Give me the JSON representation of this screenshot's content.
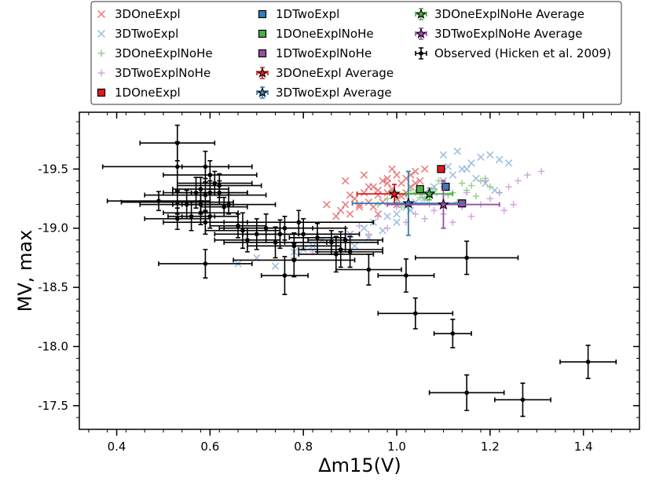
{
  "chart_data": {
    "type": "scatter",
    "title": "",
    "xlabel": "Δm15(V)",
    "ylabel": "MV, max",
    "xlim": [
      0.32,
      1.52
    ],
    "ylim": [
      -17.3,
      -19.98
    ],
    "y_inverted": true,
    "xticks": [
      0.4,
      0.6,
      0.8,
      1.0,
      1.2,
      1.4
    ],
    "xtick_labels": [
      "0.4",
      "0.6",
      "0.8",
      "1.0",
      "1.2",
      "1.4"
    ],
    "yticks": [
      -19.5,
      -19.0,
      -18.5,
      -18.0,
      -17.5
    ],
    "ytick_labels": [
      "-19.5",
      "-19.0",
      "-18.5",
      "-18.0",
      "-17.5"
    ],
    "grid": false,
    "legend_placement": "top-outside",
    "legend": [
      {
        "label": "3DOneExpl",
        "marker": "x",
        "color": "#e8696b"
      },
      {
        "label": "3DTwoExpl",
        "marker": "x",
        "color": "#8fb5d9"
      },
      {
        "label": "3DOneExplNoHe",
        "marker": "plus",
        "color": "#86c97d"
      },
      {
        "label": "3DTwoExplNoHe",
        "marker": "plus",
        "color": "#c99ad3"
      },
      {
        "label": "1DOneExpl",
        "marker": "square",
        "color": "#e41a1c"
      },
      {
        "label": "1DTwoExpl",
        "marker": "square",
        "color": "#377eb8"
      },
      {
        "label": "1DOneExplNoHe",
        "marker": "square",
        "color": "#4daf4a"
      },
      {
        "label": "1DTwoExplNoHe",
        "marker": "square",
        "color": "#984ea3"
      },
      {
        "label": "3DOneExpl Average",
        "marker": "star-err",
        "color": "#e41a1c"
      },
      {
        "label": "3DTwoExpl Average",
        "marker": "star-err",
        "color": "#377eb8"
      },
      {
        "label": "3DOneExplNoHe Average",
        "marker": "star-err",
        "color": "#4daf4a"
      },
      {
        "label": "3DTwoExplNoHe Average",
        "marker": "star-err",
        "color": "#984ea3"
      },
      {
        "label": "Observed (Hicken et al. 2009)",
        "marker": "dot-err",
        "color": "#000000"
      }
    ],
    "series": [
      {
        "name": "3DOneExpl",
        "color": "#e8696b",
        "marker": "x",
        "x": [
          0.87,
          0.88,
          0.89,
          0.9,
          0.91,
          0.92,
          0.93,
          0.94,
          0.95,
          0.96,
          0.97,
          0.98,
          0.99,
          1.0,
          1.01,
          1.02,
          1.03,
          1.04,
          1.05,
          1.06,
          0.9,
          0.92,
          0.94,
          0.96,
          0.98,
          1.0,
          1.02,
          1.04,
          0.93,
          0.95,
          0.97,
          0.99,
          1.01,
          1.03,
          1.05,
          0.96,
          0.98,
          1.0,
          0.85,
          0.89
        ],
        "y": [
          -19.1,
          -19.15,
          -19.2,
          -19.12,
          -19.25,
          -19.18,
          -19.3,
          -19.22,
          -19.35,
          -19.28,
          -19.4,
          -19.3,
          -19.33,
          -19.45,
          -19.38,
          -19.42,
          -19.35,
          -19.48,
          -19.4,
          -19.5,
          -19.28,
          -19.2,
          -19.35,
          -19.32,
          -19.42,
          -19.25,
          -19.3,
          -19.38,
          -19.45,
          -19.18,
          -19.22,
          -19.5,
          -19.27,
          -19.45,
          -19.32,
          -19.12,
          -19.38,
          -19.2,
          -19.2,
          -19.4
        ]
      },
      {
        "name": "3DTwoExpl",
        "color": "#8fb5d9",
        "marker": "x",
        "x": [
          0.66,
          0.7,
          0.74,
          0.78,
          0.82,
          0.86,
          0.9,
          0.93,
          0.95,
          0.98,
          1.0,
          1.02,
          1.04,
          1.06,
          1.08,
          1.1,
          1.12,
          1.14,
          1.16,
          1.18,
          1.2,
          1.22,
          1.24,
          1.1,
          1.13,
          1.15,
          1.17,
          1.19,
          1.21,
          1.06,
          1.03,
          1.0,
          0.97,
          0.94,
          0.91,
          0.88,
          0.84,
          0.8,
          1.08,
          1.11
        ],
        "y": [
          -18.7,
          -18.75,
          -18.68,
          -18.8,
          -18.85,
          -18.9,
          -18.95,
          -19.0,
          -19.05,
          -19.1,
          -19.12,
          -19.18,
          -19.22,
          -19.3,
          -19.35,
          -19.4,
          -19.45,
          -19.5,
          -19.55,
          -19.6,
          -19.62,
          -19.58,
          -19.55,
          -19.62,
          -19.65,
          -19.5,
          -19.42,
          -19.38,
          -19.32,
          -19.25,
          -19.15,
          -19.05,
          -18.98,
          -18.92,
          -18.85,
          -18.8,
          -18.9,
          -18.82,
          -19.3,
          -19.52
        ]
      },
      {
        "name": "3DOneExplNoHe",
        "color": "#86c97d",
        "marker": "plus",
        "x": [
          0.96,
          0.98,
          1.0,
          1.02,
          1.04,
          1.06,
          1.08,
          1.1,
          1.12,
          1.14,
          1.16,
          1.18,
          1.2,
          1.22,
          1.01,
          1.03,
          1.05,
          1.07,
          1.09,
          1.11,
          1.13,
          1.15,
          0.99,
          1.17,
          1.19
        ],
        "y": [
          -19.2,
          -19.25,
          -19.22,
          -19.28,
          -19.3,
          -19.25,
          -19.33,
          -19.35,
          -19.3,
          -19.38,
          -19.36,
          -19.4,
          -19.35,
          -19.3,
          -19.18,
          -19.32,
          -19.26,
          -19.2,
          -19.4,
          -19.28,
          -19.22,
          -19.32,
          -19.3,
          -19.27,
          -19.42
        ]
      },
      {
        "name": "3DTwoExplNoHe",
        "color": "#c99ad3",
        "marker": "plus",
        "x": [
          0.78,
          0.82,
          0.86,
          0.9,
          0.94,
          0.98,
          1.02,
          1.06,
          1.1,
          1.14,
          1.18,
          1.2,
          1.22,
          1.24,
          1.26,
          1.28,
          1.31,
          1.16,
          1.12,
          1.08,
          1.04,
          1.0,
          0.96,
          0.92,
          1.25,
          1.23,
          1.19,
          1.15
        ],
        "y": [
          -18.75,
          -18.8,
          -18.85,
          -18.92,
          -18.95,
          -19.0,
          -19.05,
          -19.08,
          -19.12,
          -19.18,
          -19.2,
          -19.25,
          -19.3,
          -19.35,
          -19.4,
          -19.45,
          -19.48,
          -19.1,
          -19.05,
          -19.15,
          -19.12,
          -19.18,
          -19.1,
          -19.02,
          -19.2,
          -19.15,
          -19.4,
          -19.3
        ]
      },
      {
        "name": "1DOneExpl",
        "color": "#e41a1c",
        "marker": "square",
        "x": [
          1.095
        ],
        "y": [
          -19.5
        ]
      },
      {
        "name": "1DTwoExpl",
        "color": "#377eb8",
        "marker": "square",
        "x": [
          1.105
        ],
        "y": [
          -19.35
        ]
      },
      {
        "name": "1DOneExplNoHe",
        "color": "#4daf4a",
        "marker": "square",
        "x": [
          1.05
        ],
        "y": [
          -19.33
        ]
      },
      {
        "name": "1DTwoExplNoHe",
        "color": "#984ea3",
        "marker": "square",
        "x": [
          1.14
        ],
        "y": [
          -19.21
        ]
      },
      {
        "name": "3DOneExpl Average",
        "color": "#e41a1c",
        "marker": "star-err",
        "x": [
          0.995
        ],
        "y": [
          -19.29
        ],
        "xerr": [
          0.08
        ],
        "yerr": [
          0.08
        ]
      },
      {
        "name": "3DTwoExpl Average",
        "color": "#377eb8",
        "marker": "star-err",
        "x": [
          1.025
        ],
        "y": [
          -19.21
        ],
        "xerr": [
          0.12
        ],
        "yerr": [
          0.27
        ]
      },
      {
        "name": "3DOneExplNoHe Average",
        "color": "#4daf4a",
        "marker": "star-err",
        "x": [
          1.07
        ],
        "y": [
          -19.29
        ],
        "xerr": [
          0.05
        ],
        "yerr": [
          0.05
        ]
      },
      {
        "name": "3DTwoExplNoHe Average",
        "color": "#984ea3",
        "marker": "star-err",
        "x": [
          1.1
        ],
        "y": [
          -19.2
        ],
        "xerr": [
          0.12
        ],
        "yerr": [
          0.2
        ]
      },
      {
        "name": "Observed (Hicken et al. 2009)",
        "color": "#000000",
        "marker": "dot-err",
        "x": [
          0.53,
          0.53,
          0.59,
          0.6,
          0.61,
          0.62,
          0.58,
          0.57,
          0.59,
          0.6,
          0.62,
          0.55,
          0.49,
          0.53,
          0.58,
          0.64,
          0.63,
          0.58,
          0.6,
          0.53,
          0.59,
          0.56,
          0.66,
          0.67,
          0.68,
          0.7,
          0.72,
          0.74,
          0.75,
          0.76,
          0.78,
          0.79,
          0.8,
          0.83,
          0.86,
          0.87,
          0.88,
          0.89,
          0.9,
          0.59,
          0.76,
          0.78,
          0.94,
          1.02,
          1.04,
          1.12,
          1.15,
          1.15,
          1.27,
          1.41
        ],
        "y": [
          -19.72,
          -19.52,
          -19.52,
          -19.45,
          -19.38,
          -19.36,
          -19.33,
          -19.3,
          -19.28,
          -19.3,
          -19.3,
          -19.2,
          -19.23,
          -19.22,
          -19.2,
          -19.2,
          -19.18,
          -19.13,
          -19.1,
          -19.08,
          -19.05,
          -19.1,
          -19.02,
          -18.98,
          -18.9,
          -18.95,
          -19.0,
          -18.88,
          -18.95,
          -19.0,
          -18.85,
          -19.05,
          -18.95,
          -18.92,
          -18.88,
          -18.78,
          -18.82,
          -18.9,
          -18.8,
          -18.7,
          -18.6,
          -18.73,
          -18.65,
          -18.6,
          -18.28,
          -18.11,
          -18.75,
          -17.61,
          -17.55,
          -17.87
        ],
        "xerr": [
          0.08,
          0.16,
          0.05,
          0.1,
          0.08,
          0.09,
          0.06,
          0.07,
          0.13,
          0.08,
          0.06,
          0.1,
          0.11,
          0.12,
          0.06,
          0.1,
          0.05,
          0.08,
          0.06,
          0.07,
          0.09,
          0.05,
          0.06,
          0.08,
          0.07,
          0.09,
          0.1,
          0.11,
          0.08,
          0.13,
          0.1,
          0.16,
          0.12,
          0.06,
          0.1,
          0.08,
          0.09,
          0.08,
          0.07,
          0.1,
          0.05,
          0.13,
          0.07,
          0.06,
          0.08,
          0.04,
          0.11,
          0.08,
          0.06,
          0.06
        ],
        "yerr": [
          0.15,
          0.21,
          0.13,
          0.12,
          0.1,
          0.1,
          0.1,
          0.13,
          0.14,
          0.1,
          0.1,
          0.12,
          0.08,
          0.1,
          0.08,
          0.08,
          0.08,
          0.1,
          0.1,
          0.09,
          0.1,
          0.12,
          0.1,
          0.15,
          0.1,
          0.13,
          0.12,
          0.13,
          0.12,
          0.1,
          0.11,
          0.1,
          0.13,
          0.12,
          0.1,
          0.15,
          0.15,
          0.1,
          0.13,
          0.12,
          0.16,
          0.14,
          0.13,
          0.14,
          0.13,
          0.12,
          0.14,
          0.15,
          0.14,
          0.14
        ]
      }
    ]
  }
}
